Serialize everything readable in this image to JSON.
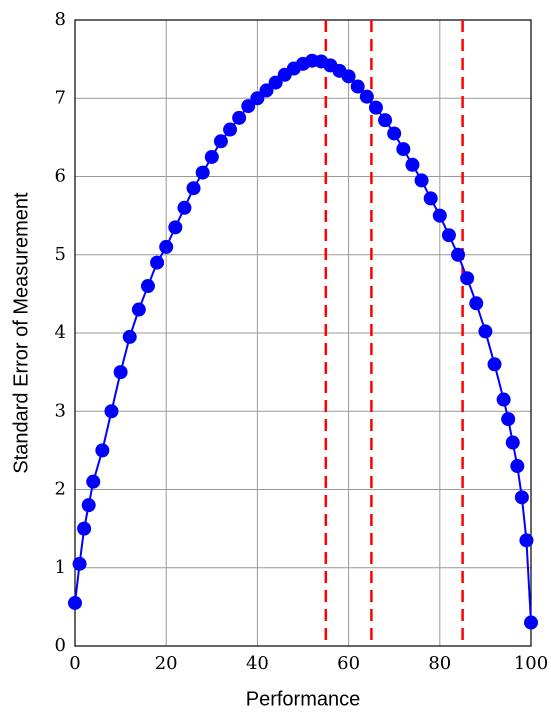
{
  "chart_data": {
    "type": "scatter",
    "xlabel": "Performance",
    "ylabel": "Standard Error of Measurement",
    "xlim": [
      0,
      100
    ],
    "ylim": [
      0,
      8
    ],
    "xticks": [
      0,
      20,
      40,
      60,
      80,
      100
    ],
    "yticks": [
      0,
      1,
      2,
      3,
      4,
      5,
      6,
      7,
      8
    ],
    "grid": true,
    "vlines": [
      55,
      65,
      85
    ],
    "vline_color": "#ff0000",
    "series": [
      {
        "color": "#0000ff",
        "x": [
          0,
          1,
          2,
          3,
          4,
          6,
          8,
          10,
          12,
          14,
          16,
          18,
          20,
          22,
          24,
          26,
          28,
          30,
          32,
          34,
          36,
          38,
          40,
          42,
          44,
          46,
          48,
          50,
          52,
          54,
          56,
          58,
          60,
          62,
          64,
          66,
          68,
          70,
          72,
          74,
          76,
          78,
          80,
          82,
          84,
          86,
          88,
          90,
          92,
          94,
          95,
          96,
          97,
          98,
          99,
          100
        ],
        "values": [
          0.55,
          1.05,
          1.5,
          1.8,
          2.1,
          2.5,
          3.0,
          3.5,
          3.95,
          4.3,
          4.6,
          4.9,
          5.1,
          5.35,
          5.6,
          5.85,
          6.05,
          6.25,
          6.45,
          6.6,
          6.75,
          6.9,
          7.0,
          7.1,
          7.2,
          7.3,
          7.38,
          7.44,
          7.48,
          7.47,
          7.42,
          7.35,
          7.28,
          7.15,
          7.02,
          6.88,
          6.72,
          6.55,
          6.35,
          6.15,
          5.95,
          5.72,
          5.5,
          5.25,
          5.0,
          4.7,
          4.38,
          4.02,
          3.6,
          3.15,
          2.9,
          2.6,
          2.3,
          1.9,
          1.35,
          0.3
        ]
      }
    ]
  }
}
